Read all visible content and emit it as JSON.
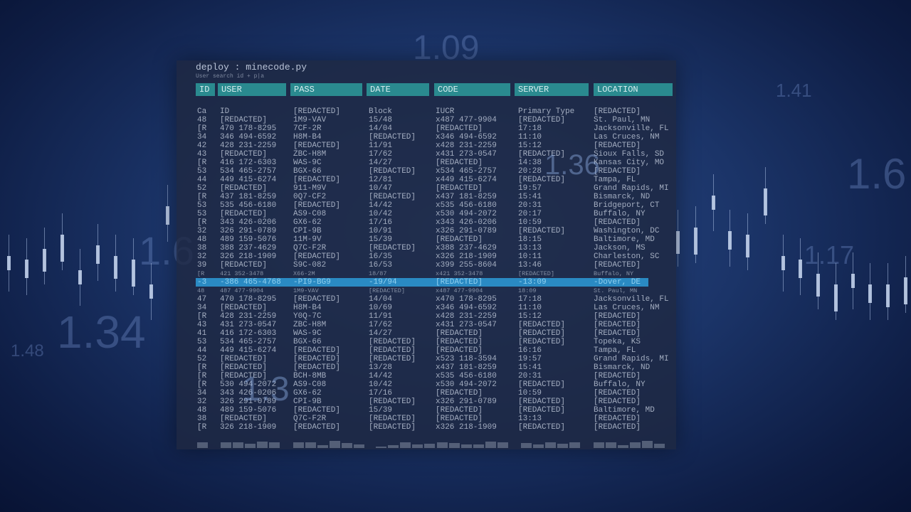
{
  "background": {
    "numbers": [
      "1.09",
      "1.41",
      "1.36",
      "1.6",
      "1.6",
      "1.34",
      "1.48",
      "1.17",
      "1.3"
    ]
  },
  "window": {
    "title": "deploy : minecode.py",
    "subtitle": "User search id + p|a"
  },
  "table": {
    "headers": [
      "ID",
      "USER",
      "PASS",
      "DATE",
      "CODE",
      "SERVER",
      "LOCATION"
    ],
    "selected_row": 20,
    "rows": [
      [
        "Ca",
        "ID",
        "[REDACTED]",
        "Block",
        "IUCR",
        "Primary Type",
        "[REDACTED]"
      ],
      [
        "48",
        "[REDACTED]",
        "1M9-VAV",
        "15/48",
        "x487 477-9904",
        "[REDACTED]",
        "St. Paul, MN"
      ],
      [
        "[R",
        "470 178-8295",
        "7CF-2R",
        "14/04",
        "[REDACTED]",
        "17:18",
        "Jacksonville, FL"
      ],
      [
        "34",
        "346 494-6592",
        "H8M-B4",
        "[REDACTED]",
        "x346 494-6592",
        "11:10",
        "Las Cruces, NM"
      ],
      [
        "42",
        "428 231-2259",
        "[REDACTED]",
        "11/91",
        "x428 231-2259",
        "15:12",
        "[REDACTED]"
      ],
      [
        "43",
        "[REDACTED]",
        "ZBC-H8M",
        "17/62",
        "x431 273-0547",
        "[REDACTED]",
        "Sioux Falls, SD"
      ],
      [
        "[R",
        "416 172-6303",
        "WAS-9C",
        "14/27",
        "[REDACTED]",
        "14:38",
        "Kansas City, MO"
      ],
      [
        "53",
        "534 465-2757",
        "BGX-66",
        "[REDACTED]",
        "x534 465-2757",
        "20:28",
        "[REDACTED]"
      ],
      [
        "44",
        "449 415-6274",
        "[REDACTED]",
        "12/81",
        "x449 415-6274",
        "[REDACTED]",
        "Tampa, FL"
      ],
      [
        "52",
        "[REDACTED]",
        "911-M9V",
        "10/47",
        "[REDACTED]",
        "19:57",
        "Grand Rapids, MI"
      ],
      [
        "[R",
        "437 181-8259",
        "0Q7-CF2",
        "[REDACTED]",
        "x437 181-8259",
        "15:41",
        "Bismarck, ND"
      ],
      [
        "53",
        "535 456-6180",
        "[REDACTED]",
        "14/42",
        "x535 456-6180",
        "20:31",
        "Bridgeport, CT"
      ],
      [
        "53",
        "[REDACTED]",
        "AS9-C08",
        "10/42",
        "x530 494-2072",
        "20:17",
        "Buffalo, NY"
      ],
      [
        "[R",
        "343 426-0206",
        "GX6-62",
        "17/16",
        "x343 426-0206",
        "10:59",
        "[REDACTED]"
      ],
      [
        "32",
        "326 291-0789",
        "CPI-9B",
        "10/91",
        "x326 291-0789",
        "[REDACTED]",
        "Washington, DC"
      ],
      [
        "48",
        "489 159-5076",
        "11M-9V",
        "15/39",
        "[REDACTED]",
        "18:15",
        "Baltimore, MD"
      ],
      [
        "38",
        "388 237-4629",
        "Q7C-F2R",
        "[REDACTED]",
        "x388 237-4629",
        "13:13",
        "Jackson, MS"
      ],
      [
        "32",
        "326 218-1909",
        "[REDACTED]",
        "16/35",
        "x326 218-1909",
        "10:11",
        "Charleston, SC"
      ],
      [
        "39",
        "[REDACTED]",
        "S9C-082",
        "16/53",
        "x399 255-8604",
        "13:46",
        "[REDACTED]"
      ],
      [
        "[R",
        "421 352-3478",
        "X66-2M",
        "18/87",
        "x421 352-3478",
        "[REDACTED]",
        "Buffalo, NY"
      ],
      [
        "-3",
        "-386 465-4768",
        "-PI9-BG9",
        "-19/94",
        "[REDACTED]",
        "-13:09",
        "-Dover, DE"
      ],
      [
        "48",
        "487 477-9904",
        "1M9-VAV",
        "[REDACTED]",
        "x487 477-9904",
        "18:09",
        "St. Paul, MN"
      ],
      [
        "47",
        "470 178-8295",
        "[REDACTED]",
        "14/04",
        "x470 178-8295",
        "17:18",
        "Jacksonville, FL"
      ],
      [
        "34",
        "[REDACTED]",
        "H8M-B4",
        "10/69",
        "x346 494-6592",
        "11:10",
        "Las Cruces, NM"
      ],
      [
        "[R",
        "428 231-2259",
        "Y0Q-7C",
        "11/91",
        "x428 231-2259",
        "15:12",
        "[REDACTED]"
      ],
      [
        "43",
        "431 273-0547",
        "ZBC-H8M",
        "17/62",
        "x431 273-0547",
        "[REDACTED]",
        "[REDACTED]"
      ],
      [
        "41",
        "416 172-6303",
        "WAS-9C",
        "14/27",
        "[REDACTED]",
        "[REDACTED]",
        "[REDACTED]"
      ],
      [
        "53",
        "534 465-2757",
        "BGX-66",
        "[REDACTED]",
        "[REDACTED]",
        "[REDACTED]",
        "Topeka, KS"
      ],
      [
        "44",
        "449 415-6274",
        "[REDACTED]",
        "[REDACTED]",
        "[REDACTED]",
        "16:16",
        "Tampa, FL"
      ],
      [
        "52",
        "[REDACTED]",
        "[REDACTED]",
        "[REDACTED]",
        "x523 118-3594",
        "19:57",
        "Grand Rapids, MI"
      ],
      [
        "[R",
        "[REDACTED]",
        "[REDACTED]",
        "13/28",
        "x437 181-8259",
        "15:41",
        "Bismarck, ND"
      ],
      [
        "[R",
        "[REDACTED]",
        "BCH-8MB",
        "14/42",
        "x535 456-6180",
        "20:31",
        "[REDACTED]"
      ],
      [
        "[R",
        "530 494-2072",
        "AS9-C08",
        "10/42",
        "x530 494-2072",
        "[REDACTED]",
        "Buffalo, NY"
      ],
      [
        "34",
        "343 426-0206",
        "GX6-62",
        "17/16",
        "[REDACTED]",
        "10:59",
        "[REDACTED]"
      ],
      [
        "32",
        "326 291-0789",
        "CPI-9B",
        "[REDACTED]",
        "x326 291-0789",
        "[REDACTED]",
        "[REDACTED]"
      ],
      [
        "48",
        "489 159-5076",
        "[REDACTED]",
        "15/39",
        "[REDACTED]",
        "[REDACTED]",
        "Baltimore, MD"
      ],
      [
        "38",
        "[REDACTED]",
        "Q7C-F2R",
        "[REDACTED]",
        "[REDACTED]",
        "13:13",
        "[REDACTED]"
      ],
      [
        "[R",
        "326 218-1909",
        "[REDACTED]",
        "[REDACTED]",
        "x326 218-1909",
        "[REDACTED]",
        "[REDACTED]"
      ]
    ]
  },
  "colors": {
    "header": "#2a8a8f",
    "highlight": "#2a8ac3",
    "panel": "#1e2842"
  }
}
